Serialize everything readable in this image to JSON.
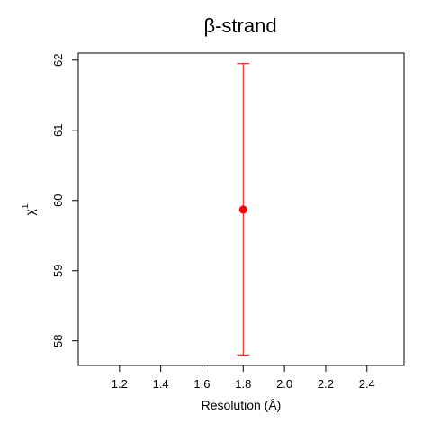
{
  "chart_data": {
    "type": "scatter",
    "title": "β-strand",
    "xlabel": "Resolution (Å)",
    "ylabel": "χ",
    "ylabel_superscript": "1",
    "xlim": [
      1.0,
      2.58
    ],
    "ylim": [
      57.65,
      62.1
    ],
    "x_ticks": [
      1.2,
      1.4,
      1.6,
      1.8,
      2.0,
      2.2,
      2.4
    ],
    "x_tick_labels": [
      "1.2",
      "1.4",
      "1.6",
      "1.8",
      "2.0",
      "2.2",
      "2.4"
    ],
    "y_ticks": [
      58,
      59,
      60,
      61,
      62
    ],
    "y_tick_labels": [
      "58",
      "59",
      "60",
      "61",
      "62"
    ],
    "grid": false,
    "points": [
      {
        "x": 1.8,
        "y": 59.87,
        "y_low": 57.8,
        "y_high": 61.95
      }
    ],
    "color": "#ff0000",
    "axis_color": "#000000"
  }
}
